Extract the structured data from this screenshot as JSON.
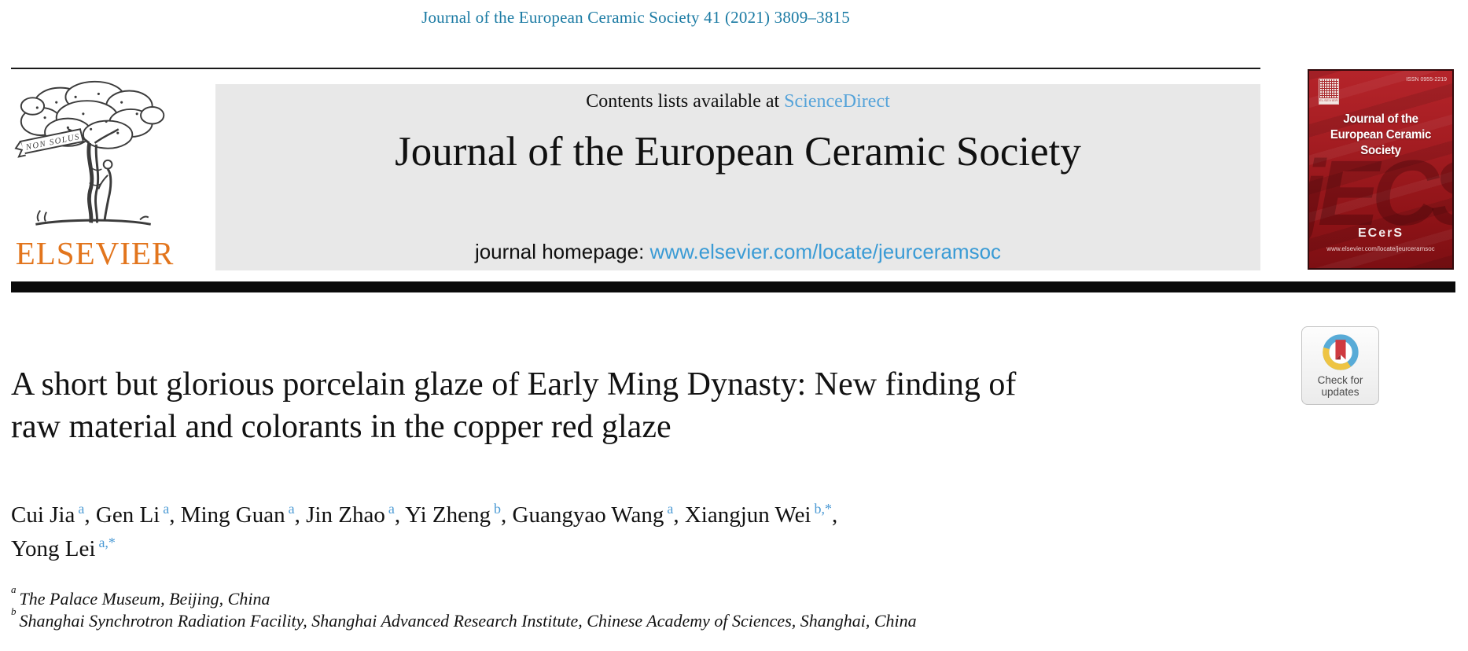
{
  "colors": {
    "citation_link": "#1a7aa3",
    "sciencedirect_link": "#55a3d9",
    "homepage_link": "#3a9bd5",
    "elsevier_orange": "#e2751d",
    "masthead_background": "#e8e8e8",
    "cover_red": "#a51d22",
    "author_superscript_blue": "#4d9bd5",
    "badge_ring_blue": "#58abd7",
    "badge_ring_yellow": "#eec443",
    "badge_bookmark_red": "#cf3a40"
  },
  "citation": "Journal of the European Ceramic Society 41 (2021) 3809–3815",
  "masthead": {
    "contents_prefix": "Contents lists available at ",
    "contents_link": "ScienceDirect",
    "journal_title": "Journal of the European Ceramic Society",
    "homepage_prefix": "journal homepage: ",
    "homepage_url": "www.elsevier.com/locate/jeurceramsoc",
    "logo_banner": "NON SOLUS",
    "logo_wordmark": "ELSEVIER"
  },
  "cover": {
    "issn": "ISSN 0955-2219",
    "title_line1": "Journal of the",
    "title_line2": "European Ceramic Society",
    "watermark": "jECS",
    "society_logo": "ECerS",
    "url": "www.elsevier.com/locate/jeurceramsoc",
    "corner_mark": "ELSEVIER"
  },
  "article": {
    "title_lines": [
      "A short but glorious porcelain glaze of Early Ming Dynasty: New finding of",
      "raw material and colorants in the copper red glaze"
    ],
    "authors": [
      {
        "name": "Cui Jia",
        "sup": "a",
        "sep": ", "
      },
      {
        "name": "Gen Li",
        "sup": "a",
        "sep": ", "
      },
      {
        "name": "Ming Guan",
        "sup": "a",
        "sep": ", "
      },
      {
        "name": "Jin Zhao",
        "sup": "a",
        "sep": ", "
      },
      {
        "name": "Yi Zheng",
        "sup": "b",
        "sep": ", "
      },
      {
        "name": "Guangyao Wang",
        "sup": "a",
        "sep": ", "
      },
      {
        "name": "Xiangjun Wei",
        "sup": "b,*",
        "sep": ",",
        "break_after": true
      },
      {
        "name": "Yong Lei",
        "sup": "a,*",
        "sep": ""
      }
    ],
    "affiliations": [
      {
        "sup": "a",
        "text": "The Palace Museum, Beijing, China"
      },
      {
        "sup": "b",
        "text": "Shanghai Synchrotron Radiation Facility, Shanghai Advanced Research Institute, Chinese Academy of Sciences, Shanghai, China"
      }
    ]
  },
  "badge": {
    "line1": "Check for",
    "line2": "updates"
  }
}
